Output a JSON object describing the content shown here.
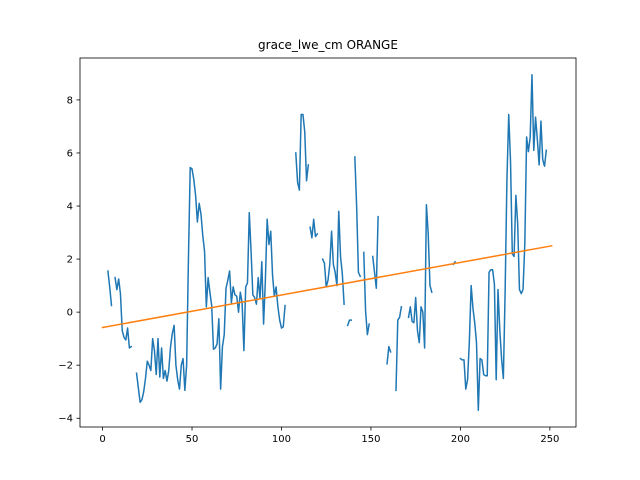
{
  "chart_data": {
    "type": "line",
    "title": "grace_lwe_cm ORANGE",
    "xlabel": "",
    "ylabel": "",
    "xlim": [
      -12.6,
      264.6
    ],
    "ylim": [
      -4.33,
      9.58
    ],
    "x_ticks": [
      0,
      50,
      100,
      150,
      200,
      250
    ],
    "y_ticks": [
      -4,
      -2,
      0,
      2,
      4,
      6,
      8
    ],
    "grid": false,
    "legend": "none",
    "colors": {
      "series": "#1f77b4",
      "trend": "#ff7f0e"
    },
    "series": [
      {
        "role": "observed",
        "segments": [
          [
            [
              3,
              1.55
            ],
            [
              4,
              0.95
            ],
            [
              5,
              0.25
            ]
          ],
          [
            [
              7,
              1.3
            ],
            [
              8,
              0.85
            ],
            [
              9,
              1.25
            ],
            [
              10,
              0.7
            ],
            [
              11,
              -0.7
            ],
            [
              12,
              -0.95
            ],
            [
              13,
              -1.05
            ],
            [
              14,
              -0.6
            ],
            [
              15,
              -1.35
            ],
            [
              16,
              -1.3
            ]
          ],
          [
            [
              19,
              -2.3
            ],
            [
              20,
              -2.85
            ],
            [
              21,
              -3.4
            ],
            [
              22,
              -3.3
            ],
            [
              23,
              -3.0
            ],
            [
              24,
              -2.5
            ],
            [
              25,
              -1.85
            ],
            [
              26,
              -2.0
            ],
            [
              27,
              -2.2
            ],
            [
              28,
              -1.0
            ],
            [
              29,
              -1.45
            ],
            [
              30,
              -2.35
            ],
            [
              31,
              -1.0
            ],
            [
              32,
              -2.45
            ],
            [
              33,
              -1.35
            ],
            [
              34,
              -2.5
            ],
            [
              35,
              -2.2
            ],
            [
              36,
              -2.6
            ],
            [
              37,
              -2.2
            ],
            [
              38,
              -1.3
            ],
            [
              39,
              -0.8
            ],
            [
              40,
              -0.5
            ],
            [
              41,
              -2.0
            ],
            [
              42,
              -2.55
            ],
            [
              43,
              -2.9
            ],
            [
              44,
              -2.0
            ],
            [
              45,
              -1.75
            ],
            [
              46,
              -2.95
            ],
            [
              47,
              -2.0
            ],
            [
              48,
              2.0
            ],
            [
              49,
              5.45
            ],
            [
              50,
              5.4
            ],
            [
              51,
              5.0
            ],
            [
              52,
              4.4
            ],
            [
              53,
              3.4
            ],
            [
              54,
              4.1
            ],
            [
              55,
              3.7
            ],
            [
              56,
              2.9
            ],
            [
              57,
              2.3
            ],
            [
              58,
              0.2
            ],
            [
              59,
              1.3
            ],
            [
              60,
              0.75
            ],
            [
              61,
              0.25
            ],
            [
              62,
              -1.4
            ],
            [
              63,
              -1.35
            ],
            [
              64,
              -1.2
            ],
            [
              65,
              -0.25
            ],
            [
              66,
              -2.9
            ],
            [
              67,
              -1.3
            ],
            [
              68,
              -0.85
            ],
            [
              69,
              0.9
            ],
            [
              70,
              1.2
            ],
            [
              71,
              1.55
            ],
            [
              72,
              0.35
            ],
            [
              73,
              0.95
            ],
            [
              74,
              0.65
            ],
            [
              75,
              0.6
            ],
            [
              76,
              0.0
            ],
            [
              77,
              0.75
            ],
            [
              78,
              0.35
            ],
            [
              79,
              -1.45
            ],
            [
              80,
              0.95
            ],
            [
              81,
              1.1
            ],
            [
              82,
              3.75
            ],
            [
              83,
              2.3
            ],
            [
              84,
              0.65
            ],
            [
              85,
              0.55
            ],
            [
              86,
              0.3
            ],
            [
              87,
              1.3
            ],
            [
              88,
              0.5
            ],
            [
              89,
              1.9
            ],
            [
              90,
              -0.45
            ],
            [
              91,
              1.2
            ],
            [
              92,
              3.5
            ],
            [
              93,
              2.55
            ],
            [
              94,
              3.05
            ],
            [
              95,
              1.4
            ],
            [
              96,
              0.6
            ],
            [
              97,
              0.95
            ],
            [
              98,
              0.2
            ],
            [
              99,
              -0.3
            ],
            [
              100,
              -0.6
            ],
            [
              101,
              -0.55
            ],
            [
              102,
              0.25
            ]
          ],
          [
            [
              108,
              6.0
            ],
            [
              109,
              4.9
            ],
            [
              110,
              4.6
            ],
            [
              111,
              7.45
            ],
            [
              112,
              7.45
            ],
            [
              113,
              6.8
            ],
            [
              114,
              4.95
            ],
            [
              115,
              5.55
            ]
          ],
          [
            [
              116,
              3.2
            ],
            [
              117,
              2.8
            ],
            [
              118,
              3.5
            ],
            [
              119,
              2.85
            ],
            [
              120,
              2.95
            ]
          ],
          [
            [
              123,
              2.0
            ],
            [
              124,
              1.85
            ],
            [
              125,
              0.95
            ],
            [
              126,
              1.2
            ],
            [
              127,
              1.8
            ],
            [
              128,
              3.05
            ],
            [
              129,
              1.8
            ],
            [
              130,
              1.5
            ],
            [
              131,
              1.0
            ],
            [
              132,
              3.8
            ],
            [
              133,
              2.1
            ],
            [
              134,
              1.45
            ],
            [
              135,
              0.3
            ]
          ],
          [
            [
              137,
              -0.5
            ],
            [
              138,
              -0.3
            ],
            [
              139,
              -0.3
            ]
          ],
          [
            [
              141,
              5.85
            ],
            [
              142,
              4.0
            ],
            [
              143,
              1.5
            ],
            [
              144,
              1.35
            ]
          ],
          [
            [
              146,
              2.25
            ],
            [
              147,
              0.05
            ],
            [
              148,
              -0.85
            ],
            [
              149,
              -0.45
            ]
          ],
          [
            [
              151,
              2.1
            ],
            [
              152,
              1.5
            ],
            [
              153,
              0.9
            ],
            [
              154,
              3.6
            ]
          ],
          [
            [
              159,
              -1.95
            ],
            [
              160,
              -1.3
            ],
            [
              161,
              -1.5
            ]
          ],
          [
            [
              164,
              -2.95
            ],
            [
              165,
              -0.3
            ],
            [
              166,
              -0.2
            ],
            [
              167,
              0.2
            ]
          ],
          [
            [
              171,
              -0.2
            ],
            [
              172,
              0.2
            ],
            [
              173,
              -0.35
            ],
            [
              174,
              -0.4
            ],
            [
              175,
              0.55
            ],
            [
              176,
              -0.7
            ],
            [
              177,
              -1.15
            ],
            [
              178,
              0.2
            ],
            [
              179,
              0.0
            ],
            [
              180,
              -1.35
            ],
            [
              181,
              4.05
            ],
            [
              182,
              2.95
            ],
            [
              183,
              1.0
            ],
            [
              184,
              0.75
            ]
          ],
          [
            [
              196,
              1.8
            ],
            [
              197,
              1.9
            ]
          ],
          [
            [
              200,
              -1.75
            ],
            [
              201,
              -1.8
            ],
            [
              202,
              -1.8
            ],
            [
              203,
              -2.9
            ],
            [
              204,
              -2.55
            ],
            [
              205,
              -1.1
            ],
            [
              206,
              1.0
            ],
            [
              207,
              0.15
            ],
            [
              208,
              -0.4
            ],
            [
              209,
              -1.15
            ],
            [
              210,
              -3.7
            ],
            [
              211,
              -1.75
            ],
            [
              212,
              -1.8
            ],
            [
              213,
              -2.35
            ],
            [
              214,
              -2.4
            ],
            [
              215,
              -2.4
            ],
            [
              216,
              1.5
            ],
            [
              217,
              1.6
            ],
            [
              218,
              1.6
            ],
            [
              219,
              1.05
            ],
            [
              220,
              -2.55
            ],
            [
              221,
              0.85
            ],
            [
              222,
              -0.65
            ],
            [
              223,
              -1.75
            ],
            [
              224,
              -2.5
            ],
            [
              225,
              0.8
            ],
            [
              226,
              5.0
            ],
            [
              227,
              7.45
            ],
            [
              228,
              5.7
            ],
            [
              229,
              2.2
            ],
            [
              230,
              2.1
            ],
            [
              231,
              4.4
            ],
            [
              232,
              3.35
            ],
            [
              233,
              0.85
            ],
            [
              234,
              0.7
            ],
            [
              235,
              0.85
            ],
            [
              236,
              2.6
            ],
            [
              237,
              6.6
            ],
            [
              238,
              6.05
            ],
            [
              239,
              6.6
            ],
            [
              240,
              8.95
            ],
            [
              241,
              6.1
            ],
            [
              242,
              7.35
            ],
            [
              243,
              6.5
            ],
            [
              244,
              5.55
            ],
            [
              245,
              7.2
            ],
            [
              246,
              5.75
            ],
            [
              247,
              5.5
            ],
            [
              248,
              6.1
            ]
          ]
        ]
      },
      {
        "role": "trend",
        "segments": [
          [
            [
              0,
              -0.58
            ],
            [
              251,
              2.5
            ]
          ]
        ]
      }
    ]
  }
}
